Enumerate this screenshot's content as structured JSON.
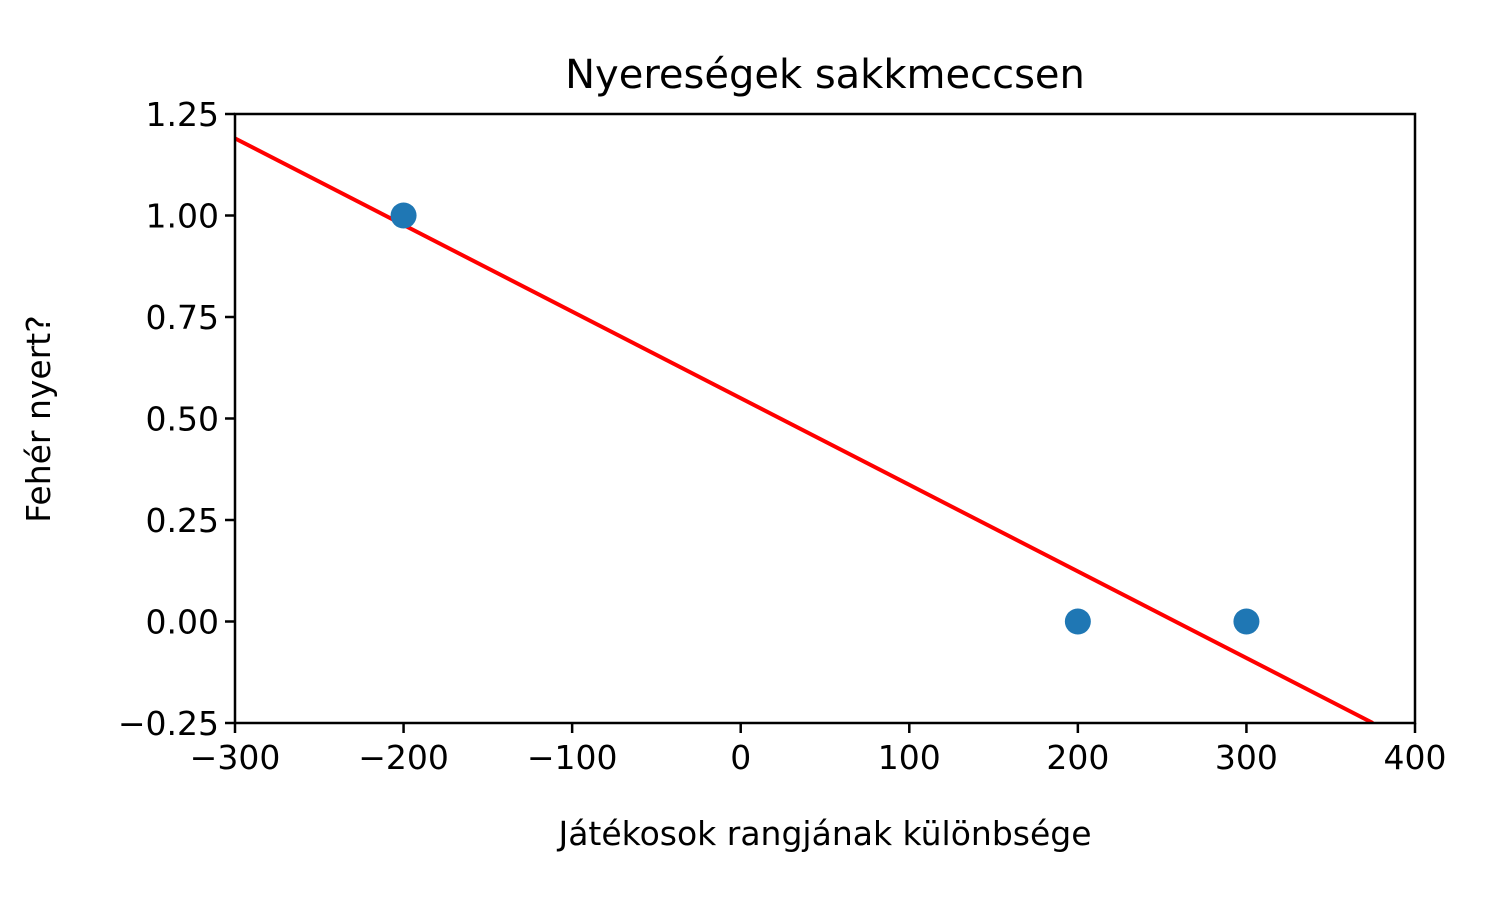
{
  "chart_data": {
    "type": "scatter",
    "title": "Nyereségek sakkmeccsen",
    "xlabel": "Játékosok rangjának különbsége",
    "ylabel": "Fehér nyert?",
    "xlim": [
      -300,
      400
    ],
    "ylim": [
      -0.25,
      1.25
    ],
    "xticks": [
      -300,
      -200,
      -100,
      0,
      100,
      200,
      300,
      400
    ],
    "xtick_labels": [
      "−300",
      "−200",
      "−100",
      "0",
      "100",
      "200",
      "300",
      "400"
    ],
    "yticks": [
      -0.25,
      0,
      0.25,
      0.5,
      0.75,
      1.0,
      1.25
    ],
    "ytick_labels": [
      "−0.25",
      "0.00",
      "0.25",
      "0.50",
      "0.75",
      "1.00",
      "1.25"
    ],
    "grid": false,
    "series": [
      {
        "kind": "points",
        "color": "#1f77b4",
        "x": [
          -200,
          200,
          300
        ],
        "y": [
          1,
          0,
          0
        ]
      },
      {
        "kind": "line",
        "color": "#ff0000",
        "x": [
          -300,
          375
        ],
        "y": [
          1.19,
          -0.25
        ]
      }
    ]
  }
}
